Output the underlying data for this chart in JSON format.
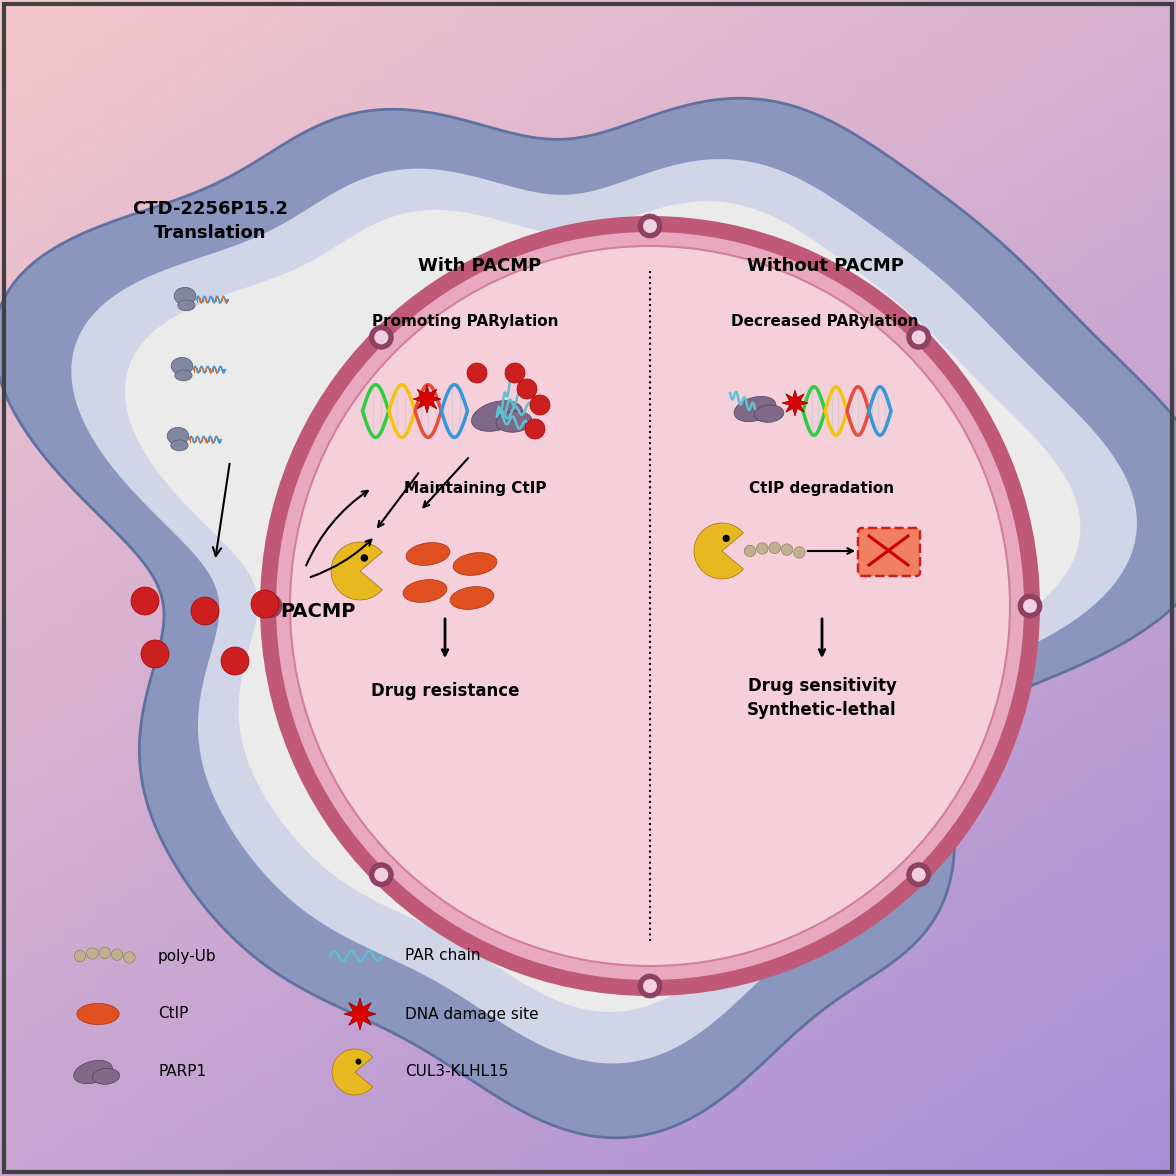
{
  "bg_gradient_top": "#f5c6cb",
  "bg_gradient_bottom": "#b0bcd4",
  "outer_cell_color": "#8a9bc4",
  "outer_cell_inner": "#c8cfe0",
  "cytoplasm_color": "#e8e8e8",
  "nucleus_border_outer": "#c06080",
  "nucleus_border_mid": "#e8a0b8",
  "nucleus_border_inner": "#f0c8d8",
  "nucleus_fill": "#f5d0da",
  "title_with_pacmp": "With PACMP",
  "title_without_pacmp": "Without PACMP",
  "label_promoting": "Promoting PARylation",
  "label_maintaining": "Maintaining CtIP",
  "label_drug_resistance": "Drug resistance",
  "label_decreased": "Decreased PARylation",
  "label_ctip_degrad": "CtIP degradation",
  "label_drug_sensitivity": "Drug sensitivity\nSynthetic-lethal",
  "label_ctd": "CTD-2256P15.2\nTranslation",
  "label_pacmp": "PACMP",
  "dna_colors": [
    "#2ecc40",
    "#f1c40f",
    "#e74c3c",
    "#3498db"
  ],
  "red_ball_color": "#cc2020",
  "pacman_color": "#e8b820",
  "pacman_eye": "#1a1a1a",
  "pore_color": "#904060",
  "pore_inner_color": "#f0d0e0"
}
